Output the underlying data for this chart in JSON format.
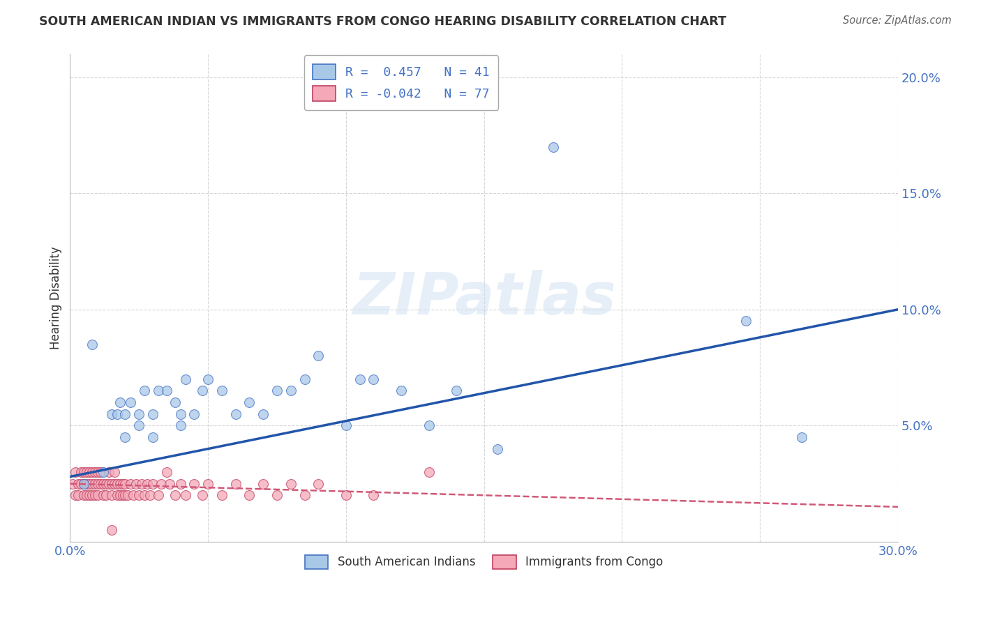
{
  "title": "SOUTH AMERICAN INDIAN VS IMMIGRANTS FROM CONGO HEARING DISABILITY CORRELATION CHART",
  "source": "Source: ZipAtlas.com",
  "ylabel": "Hearing Disability",
  "xlim": [
    0.0,
    0.3
  ],
  "ylim": [
    0.0,
    0.21
  ],
  "background_color": "#ffffff",
  "watermark_text": "ZIPatlas",
  "blue_color": "#a8c8e8",
  "blue_edge_color": "#4472c4",
  "pink_color": "#f4a8b8",
  "pink_edge_color": "#c04060",
  "blue_line_color": "#2255aa",
  "pink_line_color": "#d05878",
  "blue_scatter_x": [
    0.005,
    0.008,
    0.012,
    0.015,
    0.017,
    0.018,
    0.02,
    0.02,
    0.022,
    0.025,
    0.025,
    0.027,
    0.03,
    0.03,
    0.032,
    0.035,
    0.038,
    0.04,
    0.04,
    0.042,
    0.045,
    0.048,
    0.05,
    0.055,
    0.06,
    0.065,
    0.07,
    0.075,
    0.08,
    0.085,
    0.09,
    0.1,
    0.105,
    0.11,
    0.12,
    0.13,
    0.14,
    0.155,
    0.175,
    0.245,
    0.265
  ],
  "blue_scatter_y": [
    0.025,
    0.085,
    0.03,
    0.055,
    0.055,
    0.06,
    0.055,
    0.045,
    0.06,
    0.055,
    0.05,
    0.065,
    0.055,
    0.045,
    0.065,
    0.065,
    0.06,
    0.055,
    0.05,
    0.07,
    0.055,
    0.065,
    0.07,
    0.065,
    0.055,
    0.06,
    0.055,
    0.065,
    0.065,
    0.07,
    0.08,
    0.05,
    0.07,
    0.07,
    0.065,
    0.05,
    0.065,
    0.04,
    0.17,
    0.095,
    0.045
  ],
  "pink_scatter_x": [
    0.001,
    0.002,
    0.002,
    0.003,
    0.003,
    0.004,
    0.004,
    0.005,
    0.005,
    0.005,
    0.006,
    0.006,
    0.006,
    0.007,
    0.007,
    0.007,
    0.008,
    0.008,
    0.008,
    0.009,
    0.009,
    0.009,
    0.01,
    0.01,
    0.01,
    0.011,
    0.011,
    0.012,
    0.012,
    0.013,
    0.013,
    0.014,
    0.014,
    0.015,
    0.015,
    0.016,
    0.016,
    0.017,
    0.017,
    0.018,
    0.018,
    0.019,
    0.019,
    0.02,
    0.02,
    0.021,
    0.022,
    0.023,
    0.024,
    0.025,
    0.026,
    0.027,
    0.028,
    0.029,
    0.03,
    0.032,
    0.033,
    0.035,
    0.036,
    0.038,
    0.04,
    0.042,
    0.045,
    0.048,
    0.05,
    0.055,
    0.06,
    0.065,
    0.07,
    0.075,
    0.08,
    0.085,
    0.09,
    0.1,
    0.11,
    0.13,
    0.015
  ],
  "pink_scatter_y": [
    0.025,
    0.03,
    0.02,
    0.025,
    0.02,
    0.03,
    0.025,
    0.03,
    0.02,
    0.025,
    0.03,
    0.02,
    0.025,
    0.03,
    0.025,
    0.02,
    0.03,
    0.025,
    0.02,
    0.03,
    0.025,
    0.02,
    0.03,
    0.025,
    0.02,
    0.03,
    0.025,
    0.02,
    0.025,
    0.02,
    0.025,
    0.03,
    0.025,
    0.02,
    0.025,
    0.03,
    0.025,
    0.02,
    0.025,
    0.02,
    0.025,
    0.02,
    0.025,
    0.02,
    0.025,
    0.02,
    0.025,
    0.02,
    0.025,
    0.02,
    0.025,
    0.02,
    0.025,
    0.02,
    0.025,
    0.02,
    0.025,
    0.03,
    0.025,
    0.02,
    0.025,
    0.02,
    0.025,
    0.02,
    0.025,
    0.02,
    0.025,
    0.02,
    0.025,
    0.02,
    0.025,
    0.02,
    0.025,
    0.02,
    0.02,
    0.03,
    0.005
  ],
  "blue_line_x0": 0.0,
  "blue_line_y0": 0.028,
  "blue_line_x1": 0.3,
  "blue_line_y1": 0.1,
  "pink_line_x0": 0.0,
  "pink_line_y0": 0.025,
  "pink_line_x1": 0.3,
  "pink_line_y1": 0.015,
  "legend1_label": "R =  0.457   N = 41",
  "legend2_label": "R = -0.042   N = 77",
  "legend1_sub": "South American Indians",
  "legend2_sub": "Immigrants from Congo"
}
